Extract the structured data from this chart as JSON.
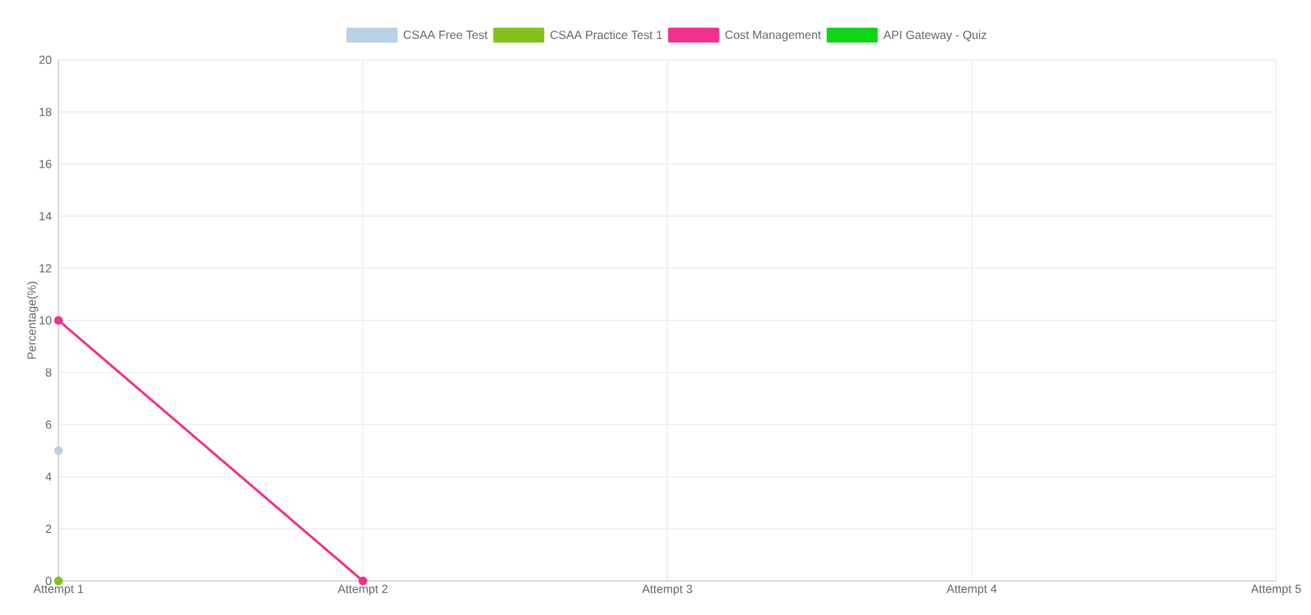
{
  "chart_data": {
    "type": "line",
    "ylabel": "Percentage(%)",
    "categories": [
      "Attempt 1",
      "Attempt 2",
      "Attempt 3",
      "Attempt 4",
      "Attempt 5"
    ],
    "series": [
      {
        "name": "CSAA Free Test",
        "color": "#b9d1e6",
        "values": [
          5,
          null,
          null,
          null,
          null
        ]
      },
      {
        "name": "CSAA Practice Test 1",
        "color": "#86c01c",
        "values": [
          0,
          null,
          null,
          null,
          null
        ]
      },
      {
        "name": "Cost Management",
        "color": "#f0318e",
        "values": [
          10,
          0,
          null,
          null,
          null
        ]
      },
      {
        "name": "API Gateway - Quiz",
        "color": "#10d41a",
        "values": [
          null,
          null,
          null,
          null,
          null
        ]
      }
    ],
    "ylim": [
      0,
      20
    ],
    "yticks": [
      0,
      2,
      4,
      6,
      8,
      10,
      12,
      14,
      16,
      18,
      20
    ],
    "grid": true,
    "legend": "top",
    "marker": "circle",
    "line_style": "solid"
  }
}
